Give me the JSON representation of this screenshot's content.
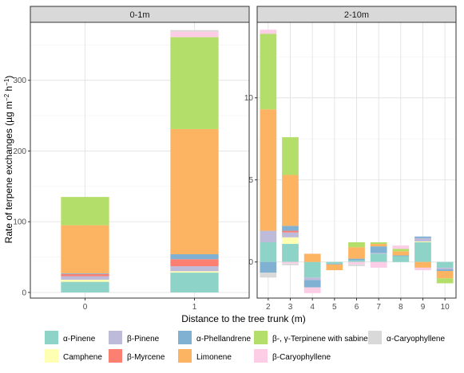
{
  "chart_data": {
    "type": "bar",
    "stacked": true,
    "xlabel": "Distance to the tree trunk (m)",
    "ylabel": "Rate of terpene exchanges (µg m⁻² h⁻¹)",
    "ylabel_parts": {
      "pre": "Rate of terpene exchanges (µg m",
      "sup1": "−2",
      "mid": " h",
      "sup2": "−1",
      "post": ")"
    },
    "grid": true,
    "legend_position": "bottom",
    "series": [
      {
        "key": "apinene",
        "name": "α-Pinene",
        "color": "#8DD3C7"
      },
      {
        "key": "camphene",
        "name": "Camphene",
        "color": "#FFFFB3"
      },
      {
        "key": "bpinene",
        "name": "β-Pinene",
        "color": "#BEBADA"
      },
      {
        "key": "bmyrcene",
        "name": "β-Myrcene",
        "color": "#FB8072"
      },
      {
        "key": "aphell",
        "name": "α-Phellandrene",
        "color": "#80B1D3"
      },
      {
        "key": "limonene",
        "name": "Limonene",
        "color": "#FDB462"
      },
      {
        "key": "bgterp",
        "name": "β-, γ-Terpinene with sabinene",
        "color": "#B3DE69"
      },
      {
        "key": "bcary",
        "name": "β-Caryophyllene",
        "color": "#FCCDE5"
      },
      {
        "key": "acary",
        "name": "α-Caryophyllene",
        "color": "#D9D9D9"
      }
    ],
    "panels": [
      {
        "title": "0-1m",
        "categories": [
          "0",
          "1"
        ],
        "ylim": [
          -8,
          382
        ],
        "yticks": [
          0,
          100,
          200,
          300
        ],
        "data": [
          {
            "apinene": 15,
            "camphene": 3,
            "bpinene": 5,
            "bmyrcene": 3,
            "aphell": 1,
            "limonene": 68,
            "bgterp": 40,
            "bcary": 0,
            "acary": 0
          },
          {
            "apinene": 28,
            "camphene": 2,
            "bpinene": 7,
            "bmyrcene": 10,
            "aphell": 7,
            "limonene": 177,
            "bgterp": 130,
            "bcary": 8,
            "acary": 2
          }
        ]
      },
      {
        "title": "2-10m",
        "categories": [
          "2",
          "3",
          "4",
          "5",
          "6",
          "7",
          "8",
          "9",
          "10"
        ],
        "ylim": [
          -2.2,
          14.6
        ],
        "yticks": [
          0,
          5,
          10
        ],
        "data": [
          {
            "apinene": 1.2,
            "camphene": 0,
            "bpinene": 0.7,
            "bmyrcene": 0,
            "aphell": -0.65,
            "limonene": 7.4,
            "bgterp": 4.6,
            "bcary": 0.25,
            "acary": -0.3
          },
          {
            "apinene": 1.1,
            "camphene": 0.4,
            "bpinene": 0.3,
            "bmyrcene": 0.1,
            "aphell": 0.3,
            "limonene": 3.1,
            "bgterp": 2.3,
            "bcary": -0.1,
            "acary": -0.1
          },
          {
            "apinene": -0.95,
            "camphene": 0,
            "bpinene": -0.15,
            "bmyrcene": 0,
            "aphell": -0.45,
            "limonene": 0.5,
            "bgterp": 0,
            "bcary": -0.35,
            "acary": 0
          },
          {
            "apinene": -0.1,
            "camphene": 0,
            "bpinene": 0,
            "bmyrcene": 0,
            "aphell": -0.05,
            "limonene": -0.35,
            "bgterp": 0,
            "bcary": 0,
            "acary": 0
          },
          {
            "apinene": 0.1,
            "camphene": 0,
            "bpinene": 0,
            "bmyrcene": 0,
            "aphell": 0.1,
            "limonene": 0.7,
            "bgterp": 0.3,
            "bcary": -0.15,
            "acary": -0.1
          },
          {
            "apinene": 0.5,
            "camphene": 0,
            "bpinene": 0.05,
            "bmyrcene": 0,
            "aphell": 0.4,
            "limonene": 0.15,
            "bgterp": 0.1,
            "bcary": -0.35,
            "acary": 0
          },
          {
            "apinene": 0.35,
            "camphene": 0,
            "bpinene": 0,
            "bmyrcene": 0,
            "aphell": 0.05,
            "limonene": 0.25,
            "bgterp": 0.15,
            "bcary": 0.2,
            "acary": 0
          },
          {
            "apinene": 1.2,
            "camphene": 0.05,
            "bpinene": 0.2,
            "bmyrcene": 0,
            "aphell": 0.1,
            "limonene": -0.35,
            "bgterp": 0,
            "bcary": -0.15,
            "acary": 0
          },
          {
            "apinene": -0.35,
            "camphene": 0,
            "bpinene": -0.1,
            "bmyrcene": 0,
            "aphell": -0.1,
            "limonene": -0.45,
            "bgterp": -0.3,
            "bcary": 0,
            "acary": 0
          }
        ]
      }
    ]
  }
}
